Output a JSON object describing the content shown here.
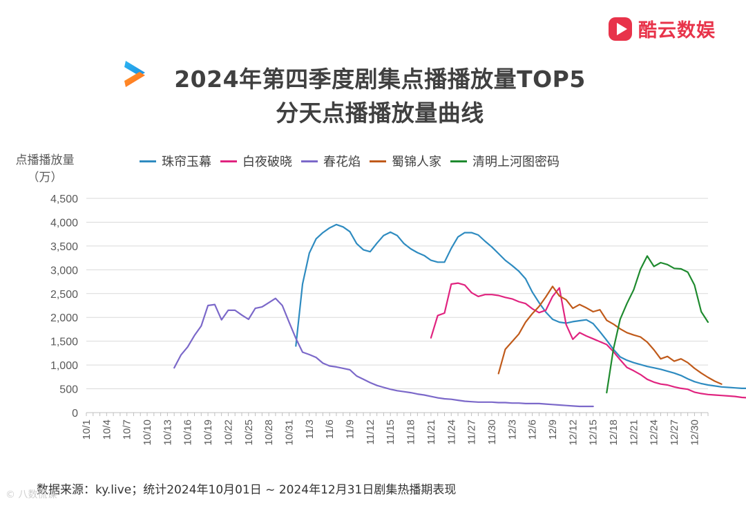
{
  "brand": {
    "name": "酷云数娱",
    "icon": "play-icon",
    "color": "#e8334a"
  },
  "title": {
    "line1": "2024年第四季度剧集点播播放量TOP5",
    "line2": "分天点播播放量曲线"
  },
  "source": "数据来源：ky.live；统计2024年10月01日 ~ 2024年12月31日剧集热播期表现",
  "watermark": "© 八数慌谋",
  "chart_data": {
    "type": "line",
    "ylabel_line1": "点播播放量",
    "ylabel_line2": "（万）",
    "ylim": [
      0,
      4500
    ],
    "yticks": [
      0,
      500,
      1000,
      1500,
      2000,
      2500,
      3000,
      3500,
      4000,
      4500
    ],
    "ytick_labels": [
      "0",
      "500",
      "1,000",
      "1,500",
      "2,000",
      "2,500",
      "3,000",
      "3,500",
      "4,000",
      "4,500"
    ],
    "x_days_total": 92,
    "x_start": "10/1",
    "xtick_labels": [
      "10/1",
      "10/4",
      "10/7",
      "10/10",
      "10/13",
      "10/16",
      "10/19",
      "10/22",
      "10/25",
      "10/28",
      "10/31",
      "11/3",
      "11/6",
      "11/9",
      "11/12",
      "11/15",
      "11/18",
      "11/21",
      "11/24",
      "11/27",
      "11/30",
      "12/3",
      "12/6",
      "12/9",
      "12/12",
      "12/15",
      "12/18",
      "12/21",
      "12/24",
      "12/27",
      "12/30"
    ],
    "grid": "horizontal",
    "legend_position": "top",
    "series": [
      {
        "name": "珠帘玉幕",
        "color": "#2e8bc0",
        "start_day": 31,
        "values": [
          1400,
          2700,
          3350,
          3650,
          3780,
          3880,
          3950,
          3900,
          3800,
          3550,
          3420,
          3380,
          3560,
          3720,
          3790,
          3720,
          3550,
          3440,
          3360,
          3300,
          3200,
          3160,
          3160,
          3450,
          3690,
          3780,
          3780,
          3730,
          3600,
          3480,
          3340,
          3200,
          3090,
          2970,
          2810,
          2530,
          2310,
          2110,
          1960,
          1900,
          1880,
          1910,
          1930,
          1950,
          1870,
          1700,
          1520,
          1330,
          1170,
          1100,
          1050,
          1010,
          970,
          940,
          910,
          870,
          830,
          780,
          710,
          650,
          610,
          580,
          560,
          540,
          530,
          520,
          510,
          510,
          490,
          460,
          440,
          430,
          430,
          420,
          410,
          390,
          350,
          340,
          330,
          320,
          300,
          290,
          280,
          280,
          280
        ]
      },
      {
        "name": "白夜破晓",
        "color": "#e0237f",
        "start_day": 51,
        "values": [
          1570,
          2040,
          2090,
          2700,
          2720,
          2680,
          2520,
          2440,
          2480,
          2480,
          2460,
          2420,
          2390,
          2330,
          2290,
          2180,
          2100,
          2150,
          2440,
          2620,
          1850,
          1540,
          1680,
          1610,
          1550,
          1490,
          1430,
          1280,
          1110,
          950,
          880,
          800,
          700,
          640,
          600,
          580,
          540,
          510,
          490,
          430,
          400,
          380,
          370,
          360,
          350,
          340,
          320,
          310,
          290,
          270,
          250
        ]
      },
      {
        "name": "春花焰",
        "color": "#7b68c9",
        "start_day": 13,
        "values": [
          940,
          1210,
          1380,
          1620,
          1820,
          2250,
          2270,
          1950,
          2150,
          2150,
          2050,
          1960,
          2190,
          2220,
          2310,
          2400,
          2250,
          1900,
          1560,
          1270,
          1220,
          1160,
          1040,
          980,
          960,
          930,
          900,
          770,
          700,
          630,
          570,
          530,
          490,
          460,
          440,
          420,
          390,
          370,
          340,
          310,
          290,
          280,
          260,
          240,
          230,
          220,
          220,
          220,
          210,
          210,
          200,
          200,
          190,
          190,
          190,
          180,
          170,
          160,
          150,
          140,
          130,
          130,
          130
        ]
      },
      {
        "name": "蜀锦人家",
        "color": "#c05a1a",
        "start_day": 61,
        "values": [
          820,
          1330,
          1490,
          1650,
          1900,
          2080,
          2230,
          2430,
          2650,
          2450,
          2370,
          2190,
          2270,
          2200,
          2120,
          2160,
          1940,
          1860,
          1760,
          1680,
          1630,
          1590,
          1480,
          1320,
          1130,
          1180,
          1080,
          1130,
          1050,
          930,
          830,
          740,
          660,
          600
        ]
      },
      {
        "name": "清明上河图密码",
        "color": "#1e8a2e",
        "start_day": 77,
        "values": [
          420,
          1330,
          1960,
          2290,
          2580,
          3010,
          3290,
          3070,
          3150,
          3110,
          3030,
          3020,
          2950,
          2680,
          2120,
          1900
        ]
      }
    ]
  }
}
